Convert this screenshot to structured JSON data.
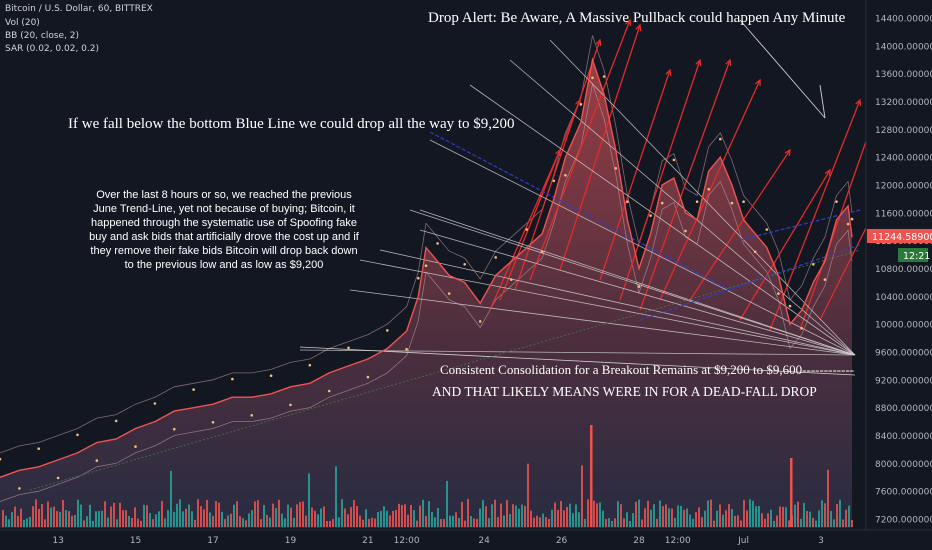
{
  "header": {
    "symbol_line": "Bitcoin / U.S. Dollar, 60, BITTREX",
    "indicators": [
      "Vol (20)",
      "BB (20, close, 2)",
      "SAR (0.02, 0.02, 0.2)"
    ]
  },
  "annotations": {
    "drop_alert": "Drop Alert: Be Aware, A Massive Pullback could happen Any Minute",
    "blue_line": "If we fall below the bottom Blue Line we could drop all the way to $9,200",
    "analysis": "Over the last 8 hours or so, we reached the previous June Trend-Line, yet not because of buying; Bitcoin, it happened through the systematic use of Spoofing fake buy and ask bids that artificially drove the cost up and if they remove their fake bids Bitcoin will drop back down to the previous low and as low as $9,200",
    "consolidation": "Consistent Consolidation for a Breakout Remains at $9,200 to $9,600------------",
    "dead_fall": "AND THAT LIKELY MEANS WERE IN FOR A DEAD-FALL DROP"
  },
  "price_badges": {
    "last_price": "11244.58900000",
    "countdown": "12:21"
  },
  "colors": {
    "background": "#131722",
    "price_line": "#ef5350",
    "area_top": "#b2454b",
    "area_bottom": "#2a2e45",
    "arrow_red": "#e32b2b",
    "trend_blue": "#2d3fc4",
    "fan_lines": "#cfcfcf",
    "vol_up": "#26a69a",
    "vol_down": "#ef5350",
    "sar_dots": "#f0c080"
  },
  "chart_data": {
    "type": "area",
    "title": "Bitcoin / U.S. Dollar, 60, BITTREX",
    "y_axis_ticks": [
      "14400.00000000",
      "14000.00000000",
      "13600.00000000",
      "13200.00000000",
      "12800.00000000",
      "12400.00000000",
      "12000.00000000",
      "11600.00000000",
      "11200.00000000",
      "10800.00000000",
      "10400.00000000",
      "10000.00000000",
      "9600.00000000",
      "9200.00000000",
      "8800.00000000",
      "8400.00000000",
      "8000.00000000",
      "7600.00000000",
      "7200.00000000"
    ],
    "ylim": [
      7100,
      14500
    ],
    "x_axis_ticks": [
      "13",
      "15",
      "17",
      "19",
      "21",
      "12:00",
      "24",
      "26",
      "28",
      "12:00",
      "Jul",
      "3"
    ],
    "xlim": [
      0,
      22
    ],
    "x_tick_positions": [
      1.5,
      3.5,
      5.5,
      7.5,
      9.5,
      10.5,
      12.5,
      14.5,
      16.5,
      17.5,
      19.2,
      21.2
    ],
    "series": [
      {
        "values": [
          [
            0.0,
            7800
          ],
          [
            0.5,
            7900
          ],
          [
            1.0,
            7950
          ],
          [
            1.5,
            8050
          ],
          [
            2.0,
            8150
          ],
          [
            2.5,
            8300
          ],
          [
            3.0,
            8350
          ],
          [
            3.5,
            8500
          ],
          [
            4.0,
            8600
          ],
          [
            4.5,
            8750
          ],
          [
            5.0,
            8800
          ],
          [
            5.5,
            8850
          ],
          [
            6.0,
            8950
          ],
          [
            6.5,
            8950
          ],
          [
            7.0,
            9000
          ],
          [
            7.5,
            9100
          ],
          [
            8.0,
            9150
          ],
          [
            8.5,
            9300
          ],
          [
            9.0,
            9400
          ],
          [
            9.5,
            9500
          ],
          [
            10.0,
            9650
          ],
          [
            10.5,
            9900
          ],
          [
            10.8,
            10400
          ],
          [
            11.0,
            11100
          ],
          [
            11.3,
            10900
          ],
          [
            11.6,
            10700
          ],
          [
            12.0,
            10600
          ],
          [
            12.4,
            10300
          ],
          [
            12.8,
            10700
          ],
          [
            13.2,
            10900
          ],
          [
            13.6,
            11100
          ],
          [
            14.0,
            11300
          ],
          [
            14.3,
            11800
          ],
          [
            14.6,
            12400
          ],
          [
            15.0,
            12900
          ],
          [
            15.3,
            13800
          ],
          [
            15.6,
            13300
          ],
          [
            15.9,
            12500
          ],
          [
            16.2,
            11500
          ],
          [
            16.5,
            10800
          ],
          [
            16.8,
            11300
          ],
          [
            17.1,
            12000
          ],
          [
            17.4,
            12100
          ],
          [
            17.7,
            11600
          ],
          [
            18.0,
            11500
          ],
          [
            18.3,
            12200
          ],
          [
            18.6,
            12400
          ],
          [
            18.9,
            12000
          ],
          [
            19.2,
            11500
          ],
          [
            19.5,
            11300
          ],
          [
            19.8,
            11100
          ],
          [
            20.1,
            10700
          ],
          [
            20.4,
            10000
          ],
          [
            20.7,
            10200
          ],
          [
            21.0,
            10600
          ],
          [
            21.3,
            10900
          ],
          [
            21.6,
            11500
          ],
          [
            21.9,
            11700
          ],
          [
            22.0,
            11250
          ]
        ]
      }
    ],
    "volume_note": "volume histogram at chart bottom",
    "grid": false
  }
}
